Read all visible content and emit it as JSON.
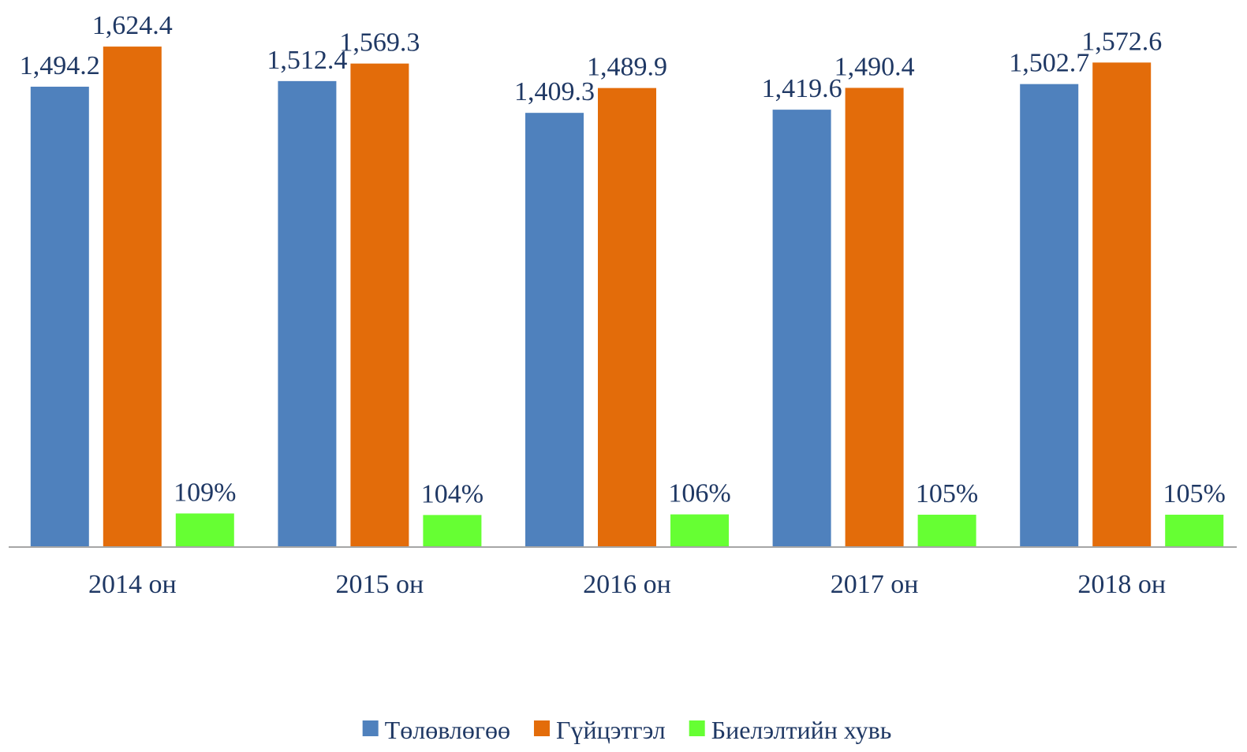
{
  "chart_data": {
    "type": "bar",
    "categories": [
      "2014 он",
      "2015 он",
      "2016 он",
      "2017 он",
      "2018 он"
    ],
    "series": [
      {
        "name": "Төлөвлөгөө",
        "color": "#4f81bd",
        "values": [
          1494.2,
          1512.4,
          1409.3,
          1419.6,
          1502.7
        ],
        "value_labels": [
          "1,494.2",
          "1,512.4",
          "1,409.3",
          "1,419.6",
          "1,502.7"
        ]
      },
      {
        "name": "Гүйцэтгэл",
        "color": "#e36c0a",
        "values": [
          1624.4,
          1569.3,
          1489.9,
          1490.4,
          1572.6
        ],
        "value_labels": [
          "1,624.4",
          "1,569.3",
          "1,489.9",
          "1,490.4",
          "1,572.6"
        ]
      },
      {
        "name": "Биелэлтийн хувь",
        "color": "#66ff33",
        "values": [
          109,
          104,
          106,
          105,
          105
        ],
        "value_labels": [
          "109%",
          "104%",
          "106%",
          "105%",
          "105%"
        ]
      }
    ],
    "ylim": [
      0,
      1750
    ],
    "legend": "bottom"
  }
}
